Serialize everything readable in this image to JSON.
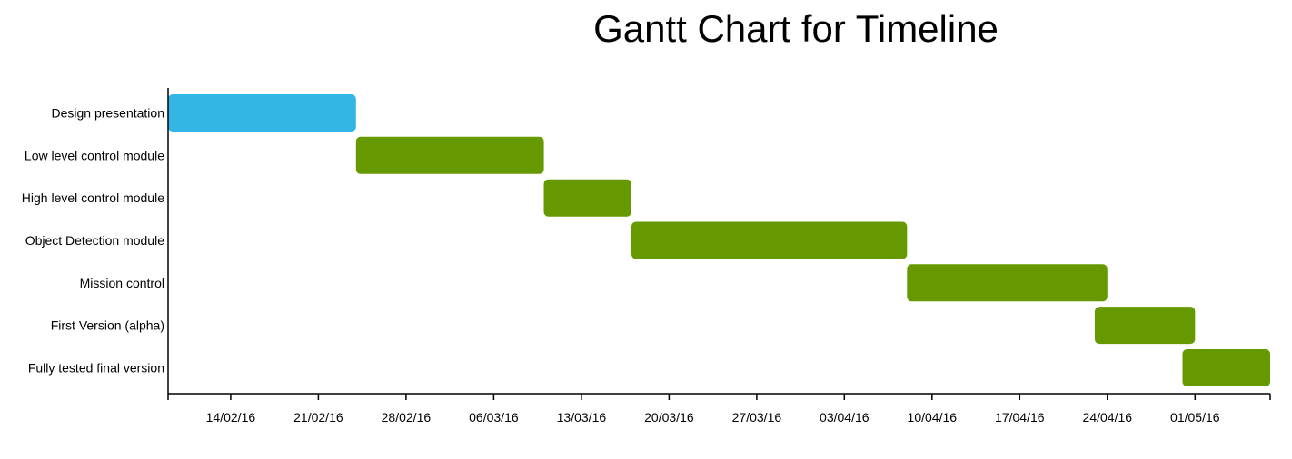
{
  "chart_data": {
    "type": "gantt",
    "title": "Gantt Chart for Timeline",
    "colors": {
      "current": "#33b5e5",
      "planned": "#669900"
    },
    "x_range": [
      "2016-02-09",
      "2016-05-07"
    ],
    "x_ticks": [
      {
        "date": "2016-02-14",
        "label": "14/02/16"
      },
      {
        "date": "2016-02-21",
        "label": "21/02/16"
      },
      {
        "date": "2016-02-28",
        "label": "28/02/16"
      },
      {
        "date": "2016-03-06",
        "label": "06/03/16"
      },
      {
        "date": "2016-03-13",
        "label": "13/03/16"
      },
      {
        "date": "2016-03-20",
        "label": "20/03/16"
      },
      {
        "date": "2016-03-27",
        "label": "27/03/16"
      },
      {
        "date": "2016-04-03",
        "label": "03/04/16"
      },
      {
        "date": "2016-04-10",
        "label": "10/04/16"
      },
      {
        "date": "2016-04-17",
        "label": "17/04/16"
      },
      {
        "date": "2016-04-24",
        "label": "24/04/16"
      },
      {
        "date": "2016-05-01",
        "label": "01/05/16"
      }
    ],
    "tasks": [
      {
        "name": "Design presentation",
        "start": "2016-02-09",
        "end": "2016-02-24",
        "status": "current"
      },
      {
        "name": "Low level control module",
        "start": "2016-02-24",
        "end": "2016-03-10",
        "status": "planned"
      },
      {
        "name": "High level control module",
        "start": "2016-03-10",
        "end": "2016-03-17",
        "status": "planned"
      },
      {
        "name": "Object Detection module",
        "start": "2016-03-17",
        "end": "2016-04-08",
        "status": "planned"
      },
      {
        "name": "Mission control",
        "start": "2016-04-08",
        "end": "2016-04-24",
        "status": "planned"
      },
      {
        "name": "First Version (alpha)",
        "start": "2016-04-23",
        "end": "2016-05-01",
        "status": "planned"
      },
      {
        "name": "Fully tested final version",
        "start": "2016-04-30",
        "end": "2016-05-08",
        "status": "planned"
      }
    ]
  }
}
